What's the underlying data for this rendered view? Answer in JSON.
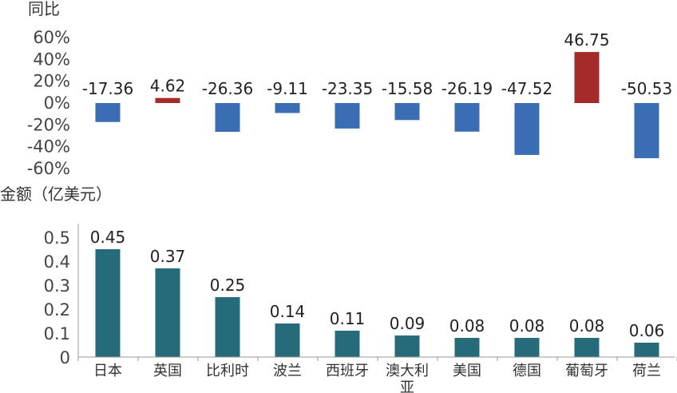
{
  "chart_data": [
    {
      "type": "bar",
      "ylabel": "同比",
      "categories": [
        "日本",
        "英国",
        "比利时",
        "波兰",
        "西班牙",
        "澳大利亚",
        "美国",
        "德国",
        "葡萄牙",
        "荷兰"
      ],
      "values": [
        -17.36,
        4.62,
        -26.36,
        -9.11,
        -23.35,
        -15.58,
        -26.19,
        -47.52,
        46.75,
        -50.53
      ],
      "data_labels": [
        "-17.36",
        "4.62",
        "-26.36",
        "-9.11",
        "-23.35",
        "-15.58",
        "-26.19",
        "-47.52",
        "46.75",
        "-50.53"
      ],
      "yticks": [
        "60%",
        "40%",
        "20%",
        "0%",
        "-20%",
        "-40%",
        "-60%"
      ],
      "ytick_values": [
        60,
        40,
        20,
        0,
        -20,
        -40,
        -60
      ],
      "ylim": [
        -60,
        60
      ],
      "colors": {
        "positive": "#a52a2a",
        "negative": "#3b6db5"
      },
      "grid": false
    },
    {
      "type": "bar",
      "ylabel": "金额（亿美元）",
      "categories": [
        "日本",
        "英国",
        "比利时",
        "波兰",
        "西班牙",
        "澳大利亚",
        "美国",
        "德国",
        "葡萄牙",
        "荷兰"
      ],
      "category_labels": [
        [
          "日本"
        ],
        [
          "英国"
        ],
        [
          "比利时"
        ],
        [
          "波兰"
        ],
        [
          "西班牙"
        ],
        [
          "澳大利",
          "亚"
        ],
        [
          "美国"
        ],
        [
          "德国"
        ],
        [
          "葡萄牙"
        ],
        [
          "荷兰"
        ]
      ],
      "values": [
        0.45,
        0.37,
        0.25,
        0.14,
        0.11,
        0.09,
        0.08,
        0.08,
        0.08,
        0.06
      ],
      "data_labels": [
        "0.45",
        "0.37",
        "0.25",
        "0.14",
        "0.11",
        "0.09",
        "0.08",
        "0.08",
        "0.08",
        "0.06"
      ],
      "yticks": [
        "0.5",
        "0.4",
        "0.3",
        "0.2",
        "0.1",
        "0"
      ],
      "ytick_values": [
        0.5,
        0.4,
        0.3,
        0.2,
        0.1,
        0
      ],
      "ylim": [
        0,
        0.5
      ],
      "colors": {
        "bar": "#256b79",
        "axis": "#999999"
      },
      "grid": false
    }
  ]
}
